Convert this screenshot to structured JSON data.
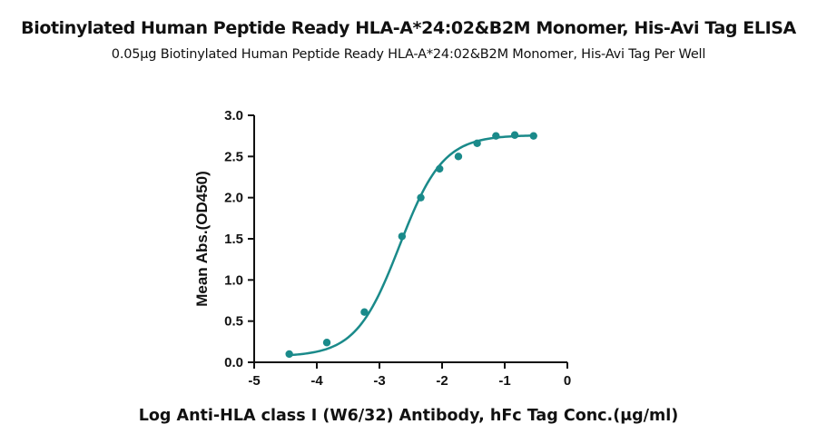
{
  "chart_data": {
    "type": "line",
    "title": "Biotinylated Human Peptide Ready  HLA-A*24:02&B2M Monomer, His-Avi Tag ELISA",
    "subtitle": "0.05μg Biotinylated Human Peptide Ready  HLA-A*24:02&B2M Monomer, His-Avi Tag Per Well",
    "xlabel": "Log Anti-HLA class I (W6/32) Antibody, hFc Tag Conc.(μg/ml)",
    "ylabel": "Mean Abs.(OD450)",
    "xlim": [
      -5,
      0
    ],
    "ylim": [
      0,
      3.0
    ],
    "x_ticks": [
      -5,
      -4,
      -3,
      -2,
      -1,
      0
    ],
    "x_tick_labels": [
      "-5",
      "-4",
      "-3",
      "-2",
      "-1",
      "0"
    ],
    "y_ticks": [
      0,
      0.5,
      1.0,
      1.5,
      2.0,
      2.5,
      3.0
    ],
    "y_tick_labels": [
      "0.0",
      "0.5",
      "1.0",
      "1.5",
      "2.0",
      "2.5",
      "3.0"
    ],
    "series_color": "#1a8a8a",
    "grid": false,
    "points": {
      "x": [
        -4.44,
        -3.84,
        -3.24,
        -2.64,
        -2.34,
        -2.04,
        -1.74,
        -1.44,
        -1.14,
        -0.84,
        -0.54
      ],
      "y": [
        0.1,
        0.24,
        0.61,
        1.53,
        2.0,
        2.35,
        2.5,
        2.66,
        2.75,
        2.76,
        2.75
      ]
    },
    "fit": {
      "model": "4PL",
      "bottom": 0.07,
      "top": 2.76,
      "logEC50": -2.68,
      "hill": 1.25
    }
  }
}
